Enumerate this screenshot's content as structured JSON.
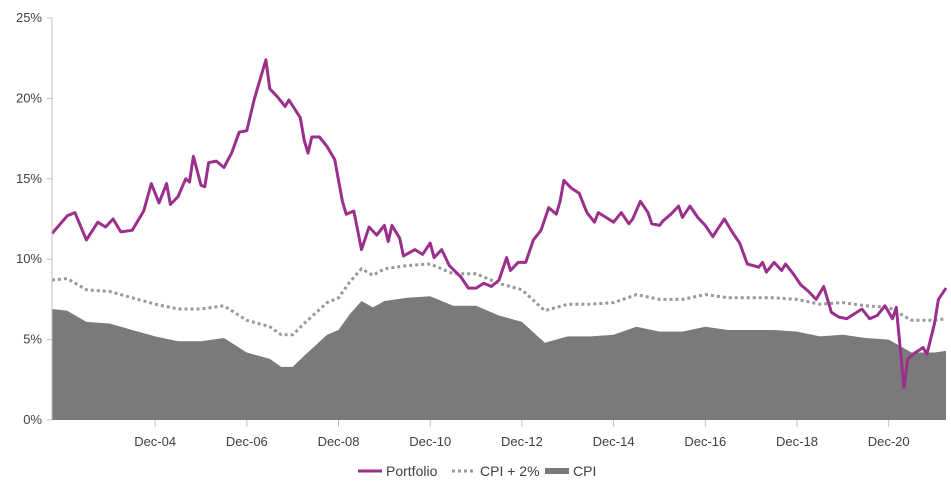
{
  "chart_data": {
    "type": "line",
    "title": "",
    "xlabel": "",
    "ylabel": "",
    "x_ticks": [
      "Dec-04",
      "Dec-06",
      "Dec-08",
      "Dec-10",
      "Dec-12",
      "Dec-14",
      "Dec-16",
      "Dec-18",
      "Dec-20"
    ],
    "y_ticks": [
      "0%",
      "5%",
      "10%",
      "15%",
      "20%",
      "25%"
    ],
    "ylim": [
      0,
      25
    ],
    "xlim": [
      "2002-09",
      "2022-03"
    ],
    "grid": false,
    "legend_position": "bottom-center",
    "series": [
      {
        "name": "Portfolio",
        "style": "line",
        "color": "#9b2f8c",
        "points": [
          [
            "2002-09",
            11.6
          ],
          [
            "2003-01",
            12.7
          ],
          [
            "2003-03",
            12.9
          ],
          [
            "2003-06",
            11.2
          ],
          [
            "2003-09",
            12.3
          ],
          [
            "2003-11",
            12.0
          ],
          [
            "2004-01",
            12.5
          ],
          [
            "2004-03",
            11.7
          ],
          [
            "2004-06",
            11.8
          ],
          [
            "2004-09",
            13.0
          ],
          [
            "2004-11",
            14.7
          ],
          [
            "2005-01",
            13.5
          ],
          [
            "2005-03",
            14.7
          ],
          [
            "2005-04",
            13.4
          ],
          [
            "2005-06",
            13.9
          ],
          [
            "2005-08",
            15.0
          ],
          [
            "2005-09",
            14.8
          ],
          [
            "2005-10",
            16.4
          ],
          [
            "2005-12",
            14.6
          ],
          [
            "2006-01",
            14.5
          ],
          [
            "2006-02",
            16.0
          ],
          [
            "2006-04",
            16.1
          ],
          [
            "2006-06",
            15.7
          ],
          [
            "2006-08",
            16.6
          ],
          [
            "2006-10",
            17.9
          ],
          [
            "2006-12",
            18.0
          ],
          [
            "2007-02",
            20.0
          ],
          [
            "2007-05",
            22.4
          ],
          [
            "2007-06",
            20.6
          ],
          [
            "2007-08",
            20.1
          ],
          [
            "2007-10",
            19.5
          ],
          [
            "2007-11",
            19.9
          ],
          [
            "2008-02",
            18.8
          ],
          [
            "2008-03",
            17.4
          ],
          [
            "2008-04",
            16.6
          ],
          [
            "2008-05",
            17.6
          ],
          [
            "2008-07",
            17.6
          ],
          [
            "2008-09",
            17.0
          ],
          [
            "2008-11",
            16.2
          ],
          [
            "2009-01",
            13.6
          ],
          [
            "2009-02",
            12.8
          ],
          [
            "2009-04",
            13.0
          ],
          [
            "2009-06",
            10.6
          ],
          [
            "2009-08",
            12.0
          ],
          [
            "2009-10",
            11.5
          ],
          [
            "2009-12",
            12.1
          ],
          [
            "2010-01",
            11.1
          ],
          [
            "2010-02",
            12.1
          ],
          [
            "2010-04",
            11.3
          ],
          [
            "2010-05",
            10.2
          ],
          [
            "2010-08",
            10.6
          ],
          [
            "2010-10",
            10.3
          ],
          [
            "2010-12",
            11.0
          ],
          [
            "2011-01",
            10.1
          ],
          [
            "2011-03",
            10.6
          ],
          [
            "2011-05",
            9.6
          ],
          [
            "2011-08",
            8.9
          ],
          [
            "2011-10",
            8.2
          ],
          [
            "2011-12",
            8.2
          ],
          [
            "2012-02",
            8.5
          ],
          [
            "2012-04",
            8.3
          ],
          [
            "2012-06",
            8.7
          ],
          [
            "2012-08",
            10.1
          ],
          [
            "2012-09",
            9.3
          ],
          [
            "2012-11",
            9.8
          ],
          [
            "2013-01",
            9.8
          ],
          [
            "2013-03",
            11.2
          ],
          [
            "2013-05",
            11.8
          ],
          [
            "2013-07",
            13.2
          ],
          [
            "2013-09",
            12.8
          ],
          [
            "2013-10",
            13.6
          ],
          [
            "2013-11",
            14.9
          ],
          [
            "2014-01",
            14.4
          ],
          [
            "2014-03",
            14.1
          ],
          [
            "2014-05",
            12.9
          ],
          [
            "2014-07",
            12.3
          ],
          [
            "2014-08",
            12.9
          ],
          [
            "2014-10",
            12.6
          ],
          [
            "2014-12",
            12.3
          ],
          [
            "2015-02",
            12.9
          ],
          [
            "2015-04",
            12.2
          ],
          [
            "2015-05",
            12.5
          ],
          [
            "2015-07",
            13.6
          ],
          [
            "2015-09",
            12.9
          ],
          [
            "2015-10",
            12.2
          ],
          [
            "2015-12",
            12.1
          ],
          [
            "2016-01",
            12.4
          ],
          [
            "2016-03",
            12.8
          ],
          [
            "2016-05",
            13.3
          ],
          [
            "2016-06",
            12.6
          ],
          [
            "2016-08",
            13.3
          ],
          [
            "2016-10",
            12.6
          ],
          [
            "2016-12",
            12.1
          ],
          [
            "2017-02",
            11.4
          ],
          [
            "2017-03",
            11.8
          ],
          [
            "2017-05",
            12.5
          ],
          [
            "2017-07",
            11.7
          ],
          [
            "2017-09",
            11.0
          ],
          [
            "2017-11",
            9.7
          ],
          [
            "2018-02",
            9.5
          ],
          [
            "2018-03",
            9.8
          ],
          [
            "2018-04",
            9.2
          ],
          [
            "2018-06",
            9.8
          ],
          [
            "2018-08",
            9.3
          ],
          [
            "2018-09",
            9.7
          ],
          [
            "2018-11",
            9.1
          ],
          [
            "2019-01",
            8.4
          ],
          [
            "2019-03",
            8.0
          ],
          [
            "2019-05",
            7.5
          ],
          [
            "2019-07",
            8.3
          ],
          [
            "2019-09",
            6.7
          ],
          [
            "2019-11",
            6.4
          ],
          [
            "2020-01",
            6.3
          ],
          [
            "2020-03",
            6.6
          ],
          [
            "2020-05",
            6.9
          ],
          [
            "2020-07",
            6.3
          ],
          [
            "2020-09",
            6.5
          ],
          [
            "2020-11",
            7.1
          ],
          [
            "2021-01",
            6.3
          ],
          [
            "2021-02",
            7.0
          ],
          [
            "2021-04",
            2.0
          ],
          [
            "2021-05",
            3.8
          ],
          [
            "2021-07",
            4.2
          ],
          [
            "2021-09",
            4.5
          ],
          [
            "2021-10",
            4.1
          ],
          [
            "2021-12",
            6.0
          ],
          [
            "2022-01",
            7.5
          ],
          [
            "2022-03",
            8.2
          ]
        ]
      },
      {
        "name": "CPI + 2%",
        "style": "dotted",
        "color": "#999999",
        "points": [
          [
            "2002-09",
            8.7
          ],
          [
            "2003-01",
            8.8
          ],
          [
            "2003-06",
            8.1
          ],
          [
            "2003-12",
            8.0
          ],
          [
            "2004-06",
            7.6
          ],
          [
            "2004-12",
            7.2
          ],
          [
            "2005-06",
            6.9
          ],
          [
            "2005-12",
            6.9
          ],
          [
            "2006-06",
            7.1
          ],
          [
            "2006-12",
            6.2
          ],
          [
            "2007-06",
            5.8
          ],
          [
            "2007-09",
            5.3
          ],
          [
            "2007-12",
            5.3
          ],
          [
            "2008-03",
            6.0
          ],
          [
            "2008-09",
            7.3
          ],
          [
            "2008-12",
            7.6
          ],
          [
            "2009-03",
            8.6
          ],
          [
            "2009-06",
            9.4
          ],
          [
            "2009-09",
            9.0
          ],
          [
            "2009-12",
            9.4
          ],
          [
            "2010-06",
            9.6
          ],
          [
            "2010-12",
            9.7
          ],
          [
            "2011-06",
            9.1
          ],
          [
            "2011-12",
            9.1
          ],
          [
            "2012-06",
            8.5
          ],
          [
            "2012-12",
            8.1
          ],
          [
            "2013-06",
            6.8
          ],
          [
            "2013-12",
            7.2
          ],
          [
            "2014-06",
            7.2
          ],
          [
            "2014-12",
            7.3
          ],
          [
            "2015-06",
            7.8
          ],
          [
            "2015-12",
            7.5
          ],
          [
            "2016-06",
            7.5
          ],
          [
            "2016-12",
            7.8
          ],
          [
            "2017-06",
            7.6
          ],
          [
            "2017-12",
            7.6
          ],
          [
            "2018-06",
            7.6
          ],
          [
            "2018-12",
            7.5
          ],
          [
            "2019-06",
            7.2
          ],
          [
            "2019-12",
            7.3
          ],
          [
            "2020-06",
            7.1
          ],
          [
            "2020-12",
            7.0
          ],
          [
            "2021-06",
            6.2
          ],
          [
            "2021-12",
            6.2
          ],
          [
            "2022-06",
            6.3
          ],
          [
            "2022-12",
            6.3
          ]
        ]
      },
      {
        "name": "CPI",
        "style": "area",
        "color": "#7a7a7c",
        "points": [
          [
            "2002-09",
            6.9
          ],
          [
            "2003-01",
            6.8
          ],
          [
            "2003-06",
            6.1
          ],
          [
            "2003-12",
            6.0
          ],
          [
            "2004-06",
            5.6
          ],
          [
            "2004-12",
            5.2
          ],
          [
            "2005-06",
            4.9
          ],
          [
            "2005-12",
            4.9
          ],
          [
            "2006-06",
            5.1
          ],
          [
            "2006-12",
            4.2
          ],
          [
            "2007-06",
            3.8
          ],
          [
            "2007-09",
            3.3
          ],
          [
            "2007-12",
            3.3
          ],
          [
            "2008-03",
            4.0
          ],
          [
            "2008-09",
            5.3
          ],
          [
            "2008-12",
            5.6
          ],
          [
            "2009-03",
            6.6
          ],
          [
            "2009-06",
            7.4
          ],
          [
            "2009-09",
            7.0
          ],
          [
            "2009-12",
            7.4
          ],
          [
            "2010-06",
            7.6
          ],
          [
            "2010-12",
            7.7
          ],
          [
            "2011-06",
            7.1
          ],
          [
            "2011-12",
            7.1
          ],
          [
            "2012-06",
            6.5
          ],
          [
            "2012-12",
            6.1
          ],
          [
            "2013-06",
            4.8
          ],
          [
            "2013-12",
            5.2
          ],
          [
            "2014-06",
            5.2
          ],
          [
            "2014-12",
            5.3
          ],
          [
            "2015-06",
            5.8
          ],
          [
            "2015-12",
            5.5
          ],
          [
            "2016-06",
            5.5
          ],
          [
            "2016-12",
            5.8
          ],
          [
            "2017-06",
            5.6
          ],
          [
            "2017-12",
            5.6
          ],
          [
            "2018-06",
            5.6
          ],
          [
            "2018-12",
            5.5
          ],
          [
            "2019-06",
            5.2
          ],
          [
            "2019-12",
            5.3
          ],
          [
            "2020-06",
            5.1
          ],
          [
            "2020-12",
            5.0
          ],
          [
            "2021-06",
            4.2
          ],
          [
            "2021-12",
            4.2
          ],
          [
            "2022-06",
            4.3
          ],
          [
            "2022-12",
            4.3
          ]
        ]
      }
    ],
    "legend": [
      "Portfolio",
      "CPI + 2%",
      "CPI"
    ]
  }
}
